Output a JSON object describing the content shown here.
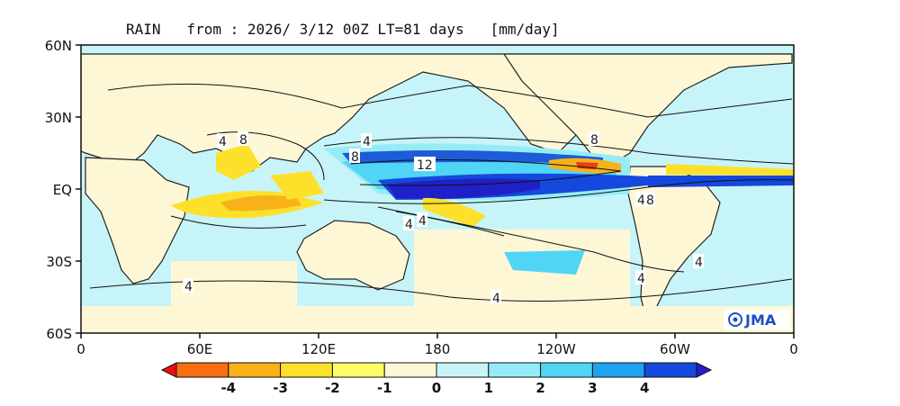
{
  "title": "RAIN   from : 2026/ 3/12 00Z LT=81 days   [mm/day]",
  "map": {
    "lat_ticks": [
      "60N",
      "30N",
      "EQ",
      "30S",
      "60S"
    ],
    "lon_ticks": [
      "0",
      "60E",
      "120E",
      "180",
      "120W",
      "60W",
      "0"
    ],
    "contour_labels": [
      "4",
      "8",
      "4",
      "8",
      "12",
      "4",
      "4",
      "8",
      "4",
      "8",
      "4",
      "4",
      "4",
      "4"
    ],
    "logo_text": "JMA",
    "colors": {
      "land": "#fdf7d6",
      "light_pos": "#c7f4f8",
      "mid_pos": "#6fd9f2",
      "strong_pos": "#1e5bd8",
      "very_strong_pos": "#1414b0",
      "light_neg": "#fff35a",
      "mid_neg": "#f7b21a",
      "strong_neg": "#e84010"
    }
  },
  "colorbar": {
    "labels": [
      "-4",
      "-3",
      "-2",
      "-1",
      "0",
      "1",
      "2",
      "3",
      "4"
    ],
    "colors": [
      "#ee1010",
      "#f76e10",
      "#fbb018",
      "#fde02a",
      "#fdfd68",
      "#fdf7d6",
      "#c7f4f8",
      "#96ecf6",
      "#50d6f4",
      "#1ea2f0",
      "#1548dc",
      "#2020c8"
    ]
  }
}
